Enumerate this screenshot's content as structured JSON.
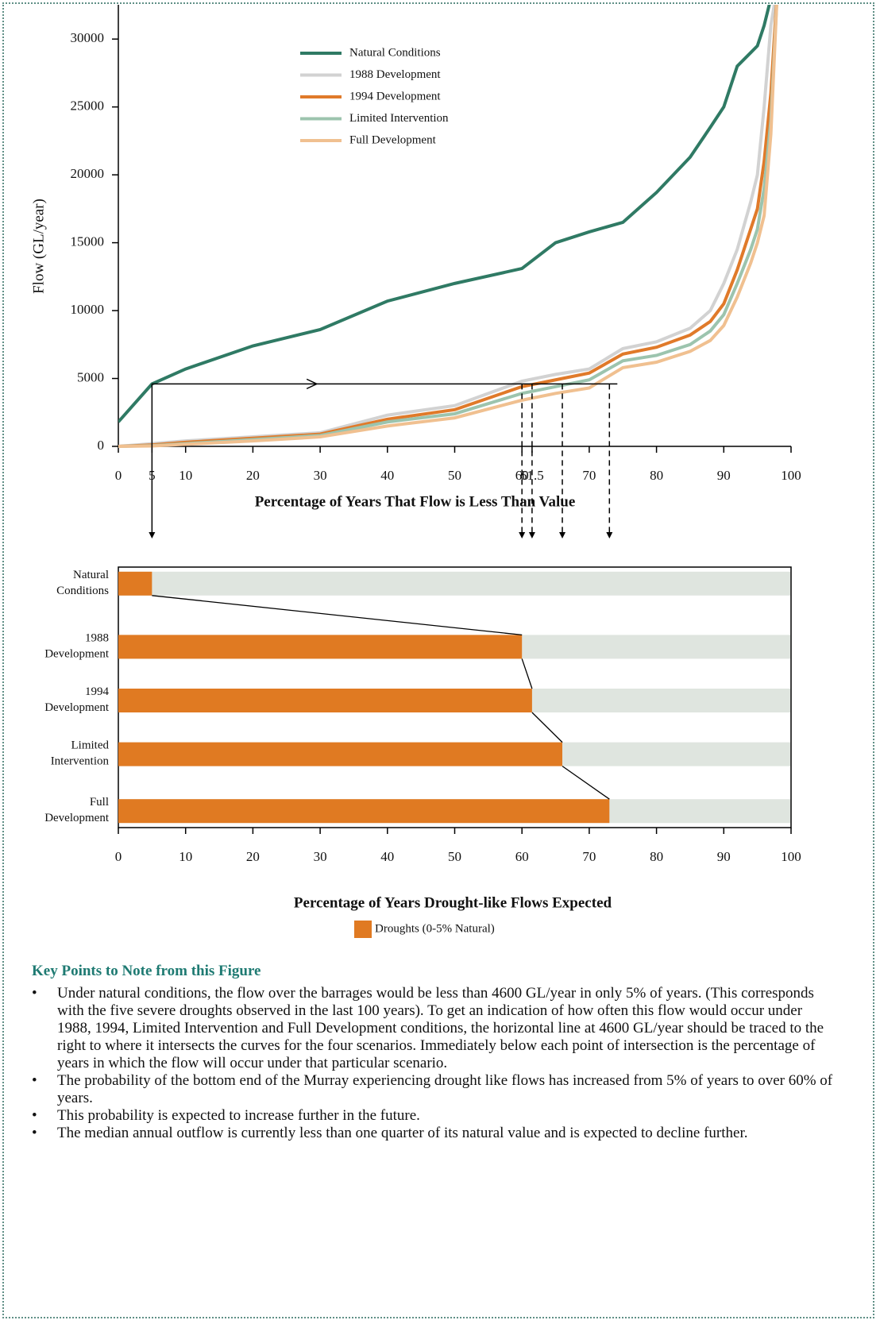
{
  "chart_data": [
    {
      "type": "line",
      "ylabel": "Flow (GL/year)",
      "xlabel": "Percentage of Years That Flow is Less Than Value",
      "x": [
        0,
        5,
        10,
        20,
        30,
        40,
        50,
        60,
        65,
        70,
        75,
        80,
        85,
        88,
        90,
        92,
        94,
        95,
        96,
        97,
        98
      ],
      "series": [
        {
          "name": "Natural Conditions",
          "color": "#2f7a64",
          "values": [
            1800,
            4600,
            5700,
            7400,
            8600,
            10700,
            12000,
            13100,
            15000,
            15800,
            16500,
            18700,
            21300,
            23500,
            25000,
            28000,
            29000,
            29500,
            31000,
            33000,
            34000
          ]
        },
        {
          "name": "1988 Development",
          "color": "#d2d2d2",
          "values": [
            0,
            200,
            400,
            700,
            1000,
            2300,
            3000,
            4800,
            5300,
            5700,
            7200,
            7700,
            8700,
            10000,
            12000,
            14500,
            18000,
            20000,
            25000,
            31000,
            34000
          ]
        },
        {
          "name": "1994 Development",
          "color": "#e07a2a",
          "values": [
            0,
            100,
            300,
            600,
            900,
            2000,
            2700,
            4400,
            4900,
            5400,
            6800,
            7300,
            8200,
            9200,
            10500,
            13000,
            16000,
            17500,
            21000,
            26000,
            34000
          ]
        },
        {
          "name": "Limited Intervention",
          "color": "#9cc4ae",
          "values": [
            0,
            50,
            200,
            500,
            800,
            1800,
            2400,
            3900,
            4400,
            4900,
            6300,
            6700,
            7500,
            8500,
            9700,
            12000,
            14500,
            16000,
            19000,
            24000,
            34000
          ]
        },
        {
          "name": "Full Development",
          "color": "#f0c090",
          "values": [
            0,
            30,
            150,
            400,
            700,
            1500,
            2100,
            3400,
            3900,
            4300,
            5800,
            6200,
            7000,
            7800,
            8900,
            11000,
            13500,
            15000,
            17000,
            23000,
            34000
          ]
        }
      ],
      "threshold": 4600,
      "xlim": [
        0,
        100
      ],
      "ylim": [
        0,
        32000
      ],
      "xticks": [
        0,
        5,
        10,
        20,
        30,
        40,
        50,
        60,
        61.5,
        70,
        80,
        90,
        100
      ],
      "yticks": [
        0,
        5000,
        10000,
        15000,
        20000,
        25000,
        30000
      ]
    },
    {
      "type": "barh",
      "xlabel": "Percentage of Years Drought-like Flows Expected",
      "categories": [
        "Natural Conditions",
        "1988 Development",
        "1994 Development",
        "Limited Intervention",
        "Full Development"
      ],
      "series": [
        {
          "name": "Droughts (0-5% Natural)",
          "color": "#e07a22",
          "values": [
            5,
            60,
            61.5,
            66,
            73
          ]
        }
      ],
      "background_color": "#dfe5df",
      "xlim": [
        0,
        100
      ],
      "xticks": [
        0,
        10,
        20,
        30,
        40,
        50,
        60,
        70,
        80,
        90,
        100
      ]
    }
  ],
  "notes": {
    "title": "Key Points to Note from this Figure",
    "bullets": [
      "Under natural conditions, the flow over the barrages would be less than 4600 GL/year in only 5% of years. (This corresponds with the five severe droughts observed in the last 100 years). To get an indication of how often this flow would occur under 1988, 1994, Limited Intervention and Full Development conditions, the horizontal line at 4600 GL/year should be traced to the right to where it intersects the curves for the four scenarios. Immediately below each point of intersection is the percentage of years in which the flow will occur under that particular scenario.",
      "The probability of the bottom end of the Murray experiencing drought like flows has increased from 5% of years to over 60% of years.",
      "This probability is expected to increase further in the future.",
      "The median annual outflow is currently less than one quarter of its natural value and is expected to decline further."
    ]
  }
}
